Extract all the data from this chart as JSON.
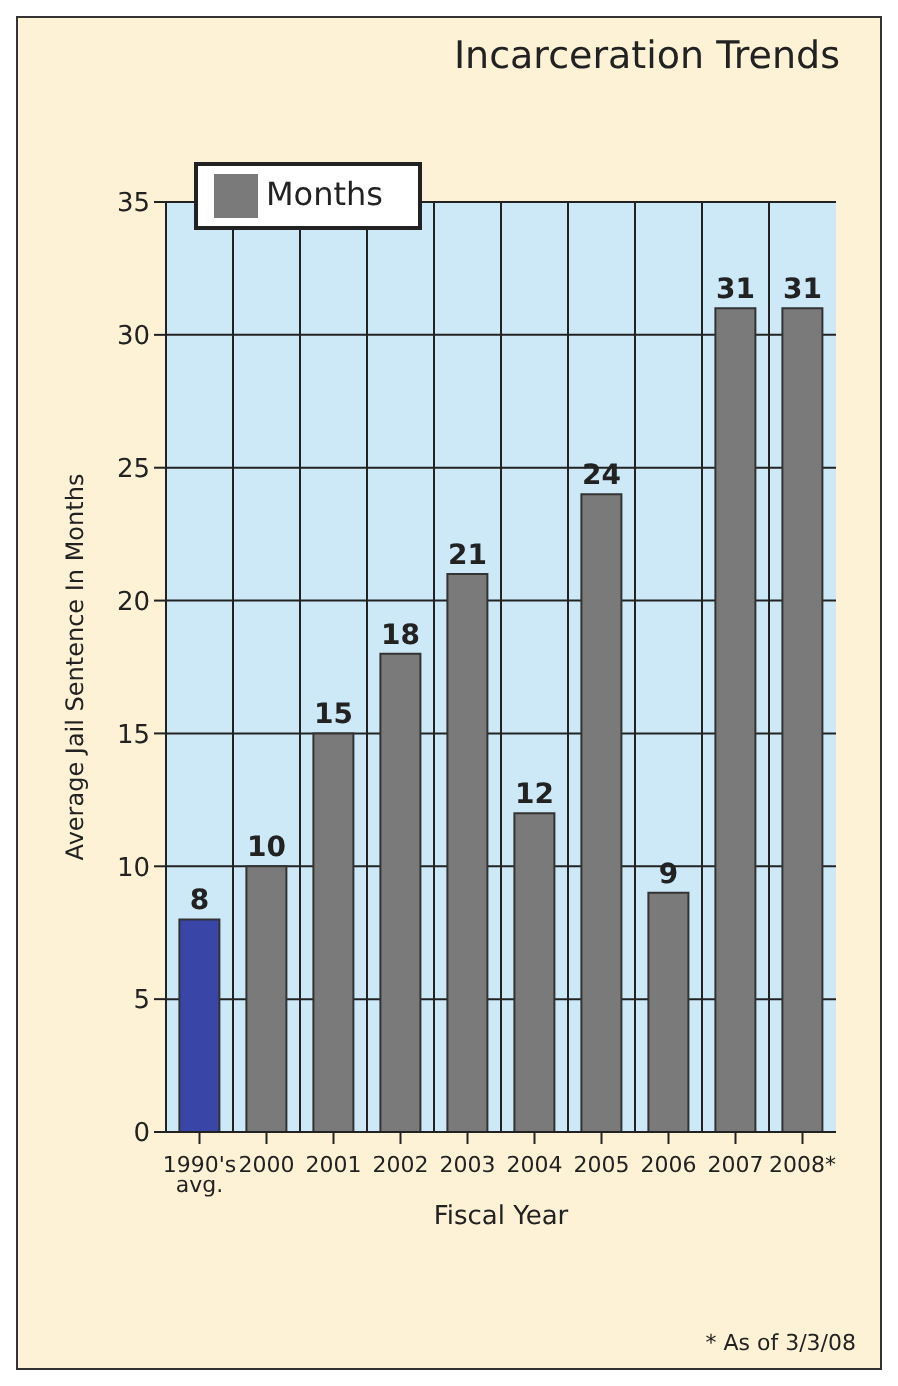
{
  "chart_data": {
    "type": "bar",
    "title": "Incarceration Trends",
    "xlabel": "Fiscal Year",
    "ylabel": "Average Jail Sentence In Months",
    "categories": [
      "1990's avg.",
      "2000",
      "2001",
      "2002",
      "2003",
      "2004",
      "2005",
      "2006",
      "2007",
      "2008*"
    ],
    "series": [
      {
        "name": "Months",
        "color": "#7a7a7a",
        "colors": [
          "#3a45a8",
          "#7a7a7a",
          "#7a7a7a",
          "#7a7a7a",
          "#7a7a7a",
          "#7a7a7a",
          "#7a7a7a",
          "#7a7a7a",
          "#7a7a7a",
          "#7a7a7a"
        ],
        "values": [
          8,
          10,
          15,
          18,
          21,
          12,
          24,
          9,
          31,
          31
        ]
      }
    ],
    "ylim": [
      0,
      35
    ],
    "yticks": [
      0,
      5,
      10,
      15,
      20,
      25,
      30,
      35
    ],
    "grid": true,
    "legend": "top left",
    "data_labels": true,
    "annotations": [
      "* As of 3/3/08"
    ]
  }
}
